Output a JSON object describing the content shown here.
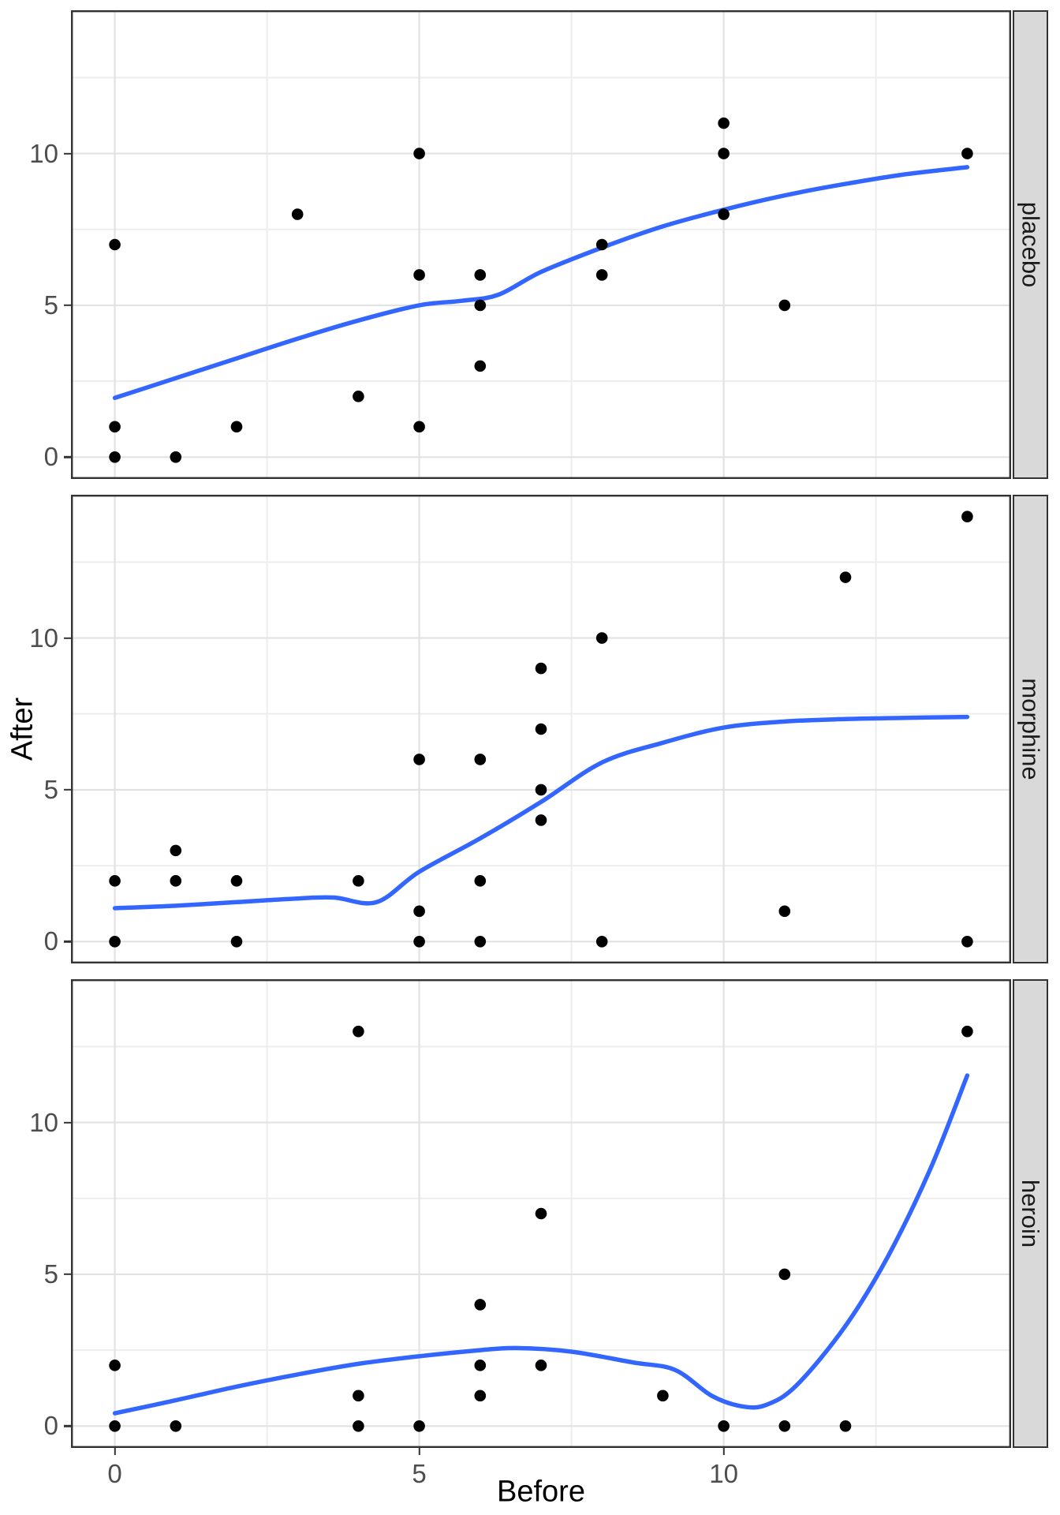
{
  "chart_data": {
    "type": "scatter",
    "title": "",
    "xlabel": "Before",
    "ylabel": "After",
    "x_ticks": [
      0,
      5,
      10
    ],
    "y_ticks": [
      0,
      5,
      10
    ],
    "minor_ticks": [
      2.5,
      7.5,
      12.5
    ],
    "x_domain": [
      -0.72,
      14.72
    ],
    "y_domain": [
      -0.72,
      14.72
    ],
    "grid": "on",
    "legend_position": "none",
    "facet_variable_values": [
      "placebo",
      "morphine",
      "heroin"
    ],
    "facets": [
      {
        "label": "placebo",
        "points": [
          [
            0,
            0
          ],
          [
            0,
            1
          ],
          [
            0,
            7
          ],
          [
            1,
            0
          ],
          [
            2,
            1
          ],
          [
            3,
            8
          ],
          [
            4,
            2
          ],
          [
            5,
            1
          ],
          [
            5,
            6
          ],
          [
            5,
            10
          ],
          [
            6,
            3
          ],
          [
            6,
            5
          ],
          [
            6,
            6
          ],
          [
            8,
            6
          ],
          [
            8,
            7
          ],
          [
            10,
            8
          ],
          [
            10,
            10
          ],
          [
            10,
            11
          ],
          [
            11,
            5
          ],
          [
            14,
            10
          ]
        ],
        "smooth": [
          [
            0,
            1.95
          ],
          [
            1,
            2.6
          ],
          [
            2,
            3.25
          ],
          [
            3,
            3.9
          ],
          [
            4,
            4.5
          ],
          [
            5,
            5.0
          ],
          [
            5.7,
            5.15
          ],
          [
            6.3,
            5.35
          ],
          [
            7,
            6.1
          ],
          [
            8,
            6.9
          ],
          [
            9,
            7.6
          ],
          [
            10,
            8.15
          ],
          [
            11,
            8.62
          ],
          [
            12,
            9.0
          ],
          [
            13,
            9.32
          ],
          [
            14,
            9.55
          ]
        ]
      },
      {
        "label": "morphine",
        "points": [
          [
            0,
            0
          ],
          [
            0,
            2
          ],
          [
            1,
            2
          ],
          [
            1,
            3
          ],
          [
            2,
            0
          ],
          [
            2,
            2
          ],
          [
            4,
            2
          ],
          [
            5,
            0
          ],
          [
            5,
            1
          ],
          [
            5,
            6
          ],
          [
            6,
            0
          ],
          [
            6,
            2
          ],
          [
            6,
            6
          ],
          [
            7,
            4
          ],
          [
            7,
            5
          ],
          [
            7,
            7
          ],
          [
            7,
            9
          ],
          [
            8,
            0
          ],
          [
            8,
            10
          ],
          [
            11,
            1
          ],
          [
            12,
            12
          ],
          [
            14,
            0
          ],
          [
            14,
            14
          ]
        ],
        "smooth": [
          [
            0,
            1.1
          ],
          [
            1,
            1.18
          ],
          [
            2,
            1.3
          ],
          [
            3,
            1.42
          ],
          [
            3.6,
            1.45
          ],
          [
            4.3,
            1.3
          ],
          [
            5,
            2.3
          ],
          [
            6,
            3.4
          ],
          [
            7,
            4.6
          ],
          [
            8,
            5.9
          ],
          [
            9,
            6.55
          ],
          [
            10,
            7.05
          ],
          [
            11,
            7.25
          ],
          [
            12,
            7.33
          ],
          [
            13,
            7.37
          ],
          [
            14,
            7.4
          ]
        ]
      },
      {
        "label": "heroin",
        "points": [
          [
            0,
            0
          ],
          [
            0,
            2
          ],
          [
            1,
            0
          ],
          [
            4,
            0
          ],
          [
            4,
            1
          ],
          [
            4,
            13
          ],
          [
            5,
            0
          ],
          [
            6,
            1
          ],
          [
            6,
            2
          ],
          [
            6,
            4
          ],
          [
            7,
            2
          ],
          [
            7,
            7
          ],
          [
            9,
            1
          ],
          [
            10,
            0
          ],
          [
            11,
            0
          ],
          [
            11,
            5
          ],
          [
            12,
            0
          ],
          [
            14,
            13
          ]
        ],
        "smooth": [
          [
            0,
            0.42
          ],
          [
            1,
            0.85
          ],
          [
            2,
            1.3
          ],
          [
            3,
            1.7
          ],
          [
            4,
            2.05
          ],
          [
            5,
            2.3
          ],
          [
            6,
            2.5
          ],
          [
            6.6,
            2.57
          ],
          [
            7.5,
            2.45
          ],
          [
            8.5,
            2.1
          ],
          [
            9.2,
            1.85
          ],
          [
            9.8,
            1.0
          ],
          [
            10.3,
            0.65
          ],
          [
            10.7,
            0.7
          ],
          [
            11.2,
            1.35
          ],
          [
            12,
            3.3
          ],
          [
            12.7,
            5.6
          ],
          [
            13.4,
            8.5
          ],
          [
            14,
            11.55
          ]
        ]
      }
    ],
    "style": {
      "smooth_color": "#3366FF",
      "point_color": "#000000",
      "panel_border_color": "#333333",
      "grid_major_color": "#e2e2e2",
      "grid_minor_color": "#ededed",
      "strip_fill": "#d9d9d9",
      "tick_label_color": "#4d4d4d",
      "axis_title_color": "#000000"
    }
  },
  "axes": {
    "x": {
      "title": "Before"
    },
    "y": {
      "title": "After"
    }
  },
  "facets": [
    {
      "label": "placebo"
    },
    {
      "label": "morphine"
    },
    {
      "label": "heroin"
    }
  ]
}
